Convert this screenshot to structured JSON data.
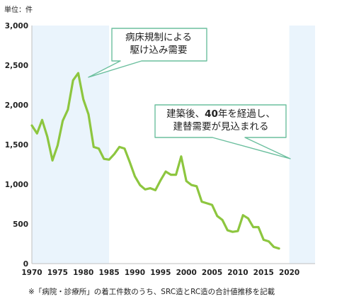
{
  "unit_label": "単位：件",
  "footnote": "※「病院・診療所」の着工件数のうち、SRC造とRC造の合計値推移を記載",
  "callouts": {
    "first": {
      "line1": "病床規制による",
      "line2": "駆け込み需要"
    },
    "second": {
      "line1_pre": "建築後、",
      "line1_bold": "40",
      "line1_post": "年を経過し、",
      "line2": "建替需要が見込まれる"
    }
  },
  "colors": {
    "line": "#8dc63f",
    "highlight": "#eaf4fc",
    "callout_border": "#6bbf9e",
    "grid": "#d9d9d9"
  },
  "chart_data": {
    "type": "line",
    "xlim": [
      1970,
      2025
    ],
    "ylim": [
      0,
      3000
    ],
    "y_ticks": [
      0,
      500,
      1000,
      1500,
      2000,
      2500,
      3000
    ],
    "y_tick_labels": [
      "0",
      "500",
      "1,000",
      "1,500",
      "2,000",
      "2,500",
      "3,000"
    ],
    "x_ticks": [
      1970,
      1975,
      1980,
      1985,
      1990,
      1995,
      2000,
      2005,
      2010,
      2015,
      2020
    ],
    "x_tick_labels": [
      "1970",
      "1975",
      "1980",
      "1985",
      "1990",
      "1995",
      "2000",
      "2005",
      "2010",
      "2015",
      "2020"
    ],
    "highlight_ranges": [
      [
        1970,
        1985
      ],
      [
        2020,
        2025
      ]
    ],
    "grid": false,
    "series": [
      {
        "x": [
          1970,
          1971,
          1972,
          1973,
          1974,
          1975,
          1976,
          1977,
          1978,
          1979,
          1980,
          1981,
          1982,
          1983,
          1984,
          1985,
          1986,
          1987,
          1988,
          1989,
          1990,
          1991,
          1992,
          1993,
          1994,
          1995,
          1996,
          1997,
          1998,
          1999,
          2000,
          2001,
          2002,
          2003,
          2004,
          2005,
          2006,
          2007,
          2008,
          2009,
          2010,
          2011,
          2012,
          2013,
          2014,
          2015,
          2016,
          2017,
          2018
        ],
        "values": [
          1740,
          1640,
          1810,
          1600,
          1300,
          1490,
          1800,
          1940,
          2310,
          2400,
          2070,
          1880,
          1470,
          1450,
          1320,
          1310,
          1380,
          1470,
          1450,
          1280,
          1100,
          990,
          935,
          950,
          925,
          1050,
          1160,
          1120,
          1120,
          1350,
          1040,
          990,
          975,
          780,
          760,
          740,
          600,
          550,
          420,
          400,
          410,
          610,
          570,
          460,
          460,
          300,
          280,
          210,
          190
        ]
      }
    ]
  }
}
